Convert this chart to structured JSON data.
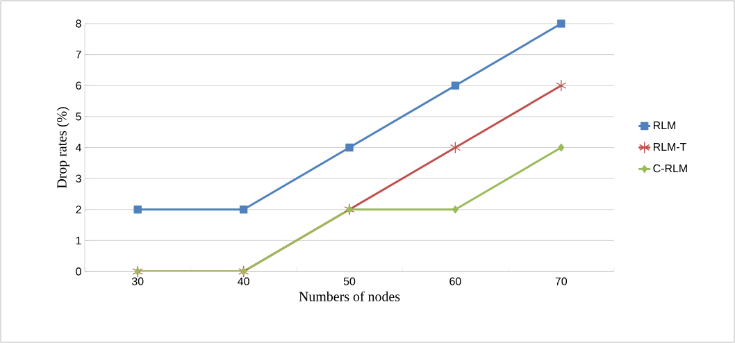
{
  "chart_data": {
    "type": "line",
    "xlabel": "Numbers of nodes",
    "ylabel": "Drop rates (%)",
    "categories": [
      "30",
      "40",
      "50",
      "60",
      "70"
    ],
    "series": [
      {
        "name": "RLM",
        "color": "#4f81bd",
        "marker": "square",
        "values": [
          2,
          2,
          4,
          6,
          8
        ]
      },
      {
        "name": "RLM-T",
        "color": "#c0504d",
        "marker": "cross",
        "values": [
          0,
          0,
          2,
          4,
          6
        ]
      },
      {
        "name": "C-RLM",
        "color": "#9bbb59",
        "marker": "diamond",
        "values": [
          0,
          0,
          2,
          2,
          4
        ]
      }
    ],
    "ylim": [
      0,
      8
    ],
    "yticks": [
      0,
      1,
      2,
      3,
      4,
      5,
      6,
      7,
      8
    ],
    "grid": "y",
    "legend": "right"
  }
}
